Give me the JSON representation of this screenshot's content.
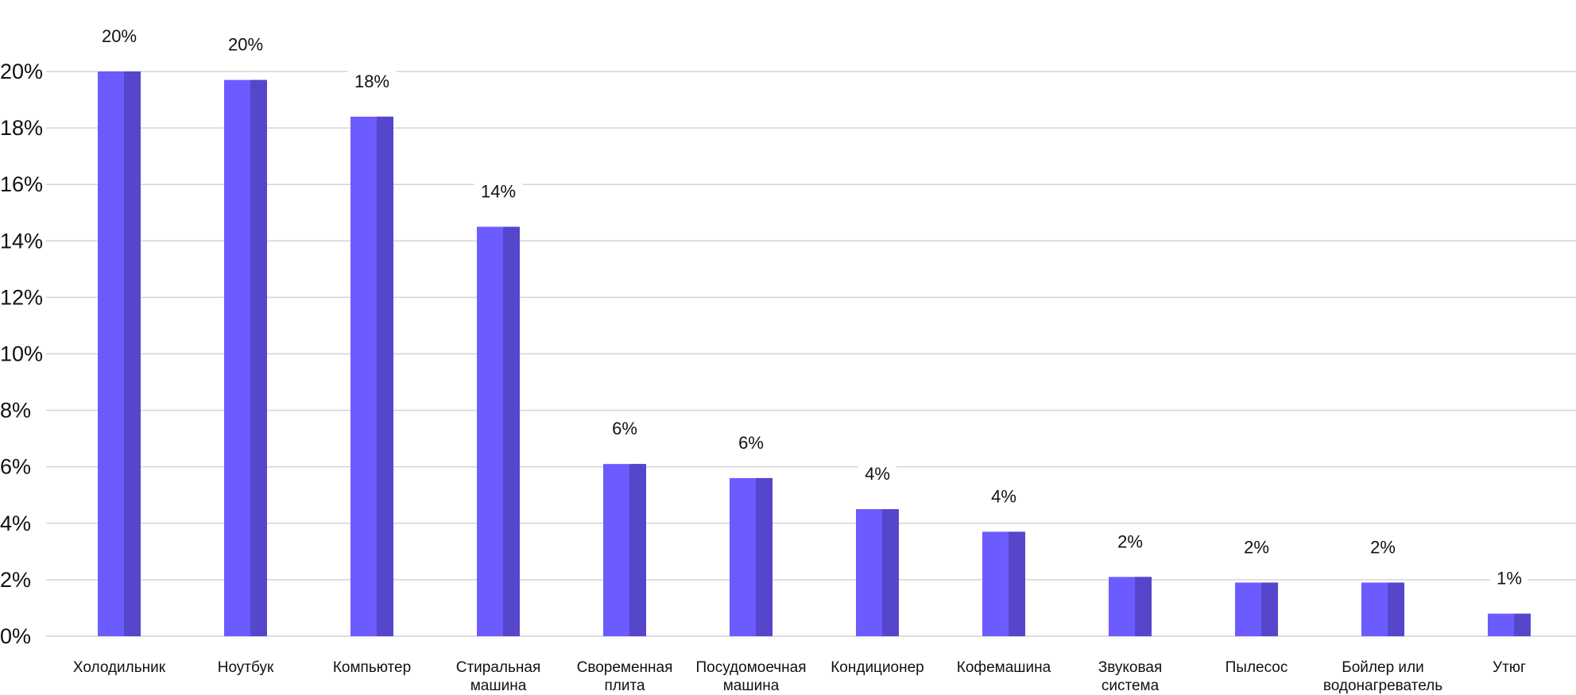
{
  "chart_data": {
    "type": "bar",
    "categories": [
      [
        "Холодильник"
      ],
      [
        "Ноутбук"
      ],
      [
        "Компьютер"
      ],
      [
        "Стиральная",
        "машина"
      ],
      [
        "Своременная",
        "плита"
      ],
      [
        "Посудомоечная",
        "машина"
      ],
      [
        "Кондиционер"
      ],
      [
        "Кофемашина"
      ],
      [
        "Звуковая",
        "система"
      ],
      [
        "Пылесос"
      ],
      [
        "Бойлер или",
        "водонагреватель"
      ],
      [
        "Утюг"
      ]
    ],
    "values": [
      20.0,
      19.7,
      18.4,
      14.5,
      6.1,
      5.6,
      4.5,
      3.7,
      2.1,
      1.9,
      1.9,
      0.8
    ],
    "data_labels": [
      "20%",
      "20%",
      "18%",
      "14%",
      "6%",
      "6%",
      "4%",
      "4%",
      "2%",
      "2%",
      "2%",
      "1%"
    ],
    "y_ticks": [
      "0%",
      "2%",
      "4%",
      "6%",
      "8%",
      "10%",
      "12%",
      "14%",
      "16%",
      "18%",
      "20%"
    ],
    "ylim": [
      0,
      20
    ],
    "title": "",
    "xlabel": "",
    "ylabel": "",
    "grid": true,
    "colors": {
      "bar_front": "#6c5cff",
      "bar_side": "#5646cc",
      "grid": "#d4d4d4"
    }
  }
}
